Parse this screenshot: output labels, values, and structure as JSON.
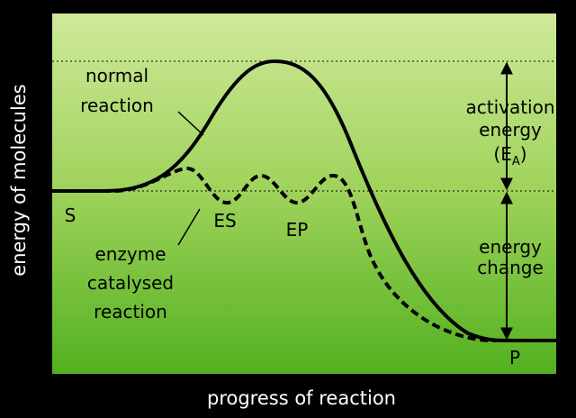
{
  "axes": {
    "y_label": "energy of molecules",
    "x_label": "progress of reaction"
  },
  "curves": {
    "normal": {
      "label": [
        "normal",
        "reaction"
      ]
    },
    "enzyme": {
      "label": [
        "enzyme",
        "catalysed",
        "reaction"
      ]
    }
  },
  "points": {
    "start": "S",
    "es": "ES",
    "ep": "EP",
    "product": "P"
  },
  "activation_energy": {
    "lines": [
      "activation",
      "energy"
    ],
    "symbol_open": "(E",
    "symbol_sub": "A",
    "symbol_close": ")"
  },
  "energy_change": {
    "lines": [
      "energy",
      "change"
    ]
  }
}
